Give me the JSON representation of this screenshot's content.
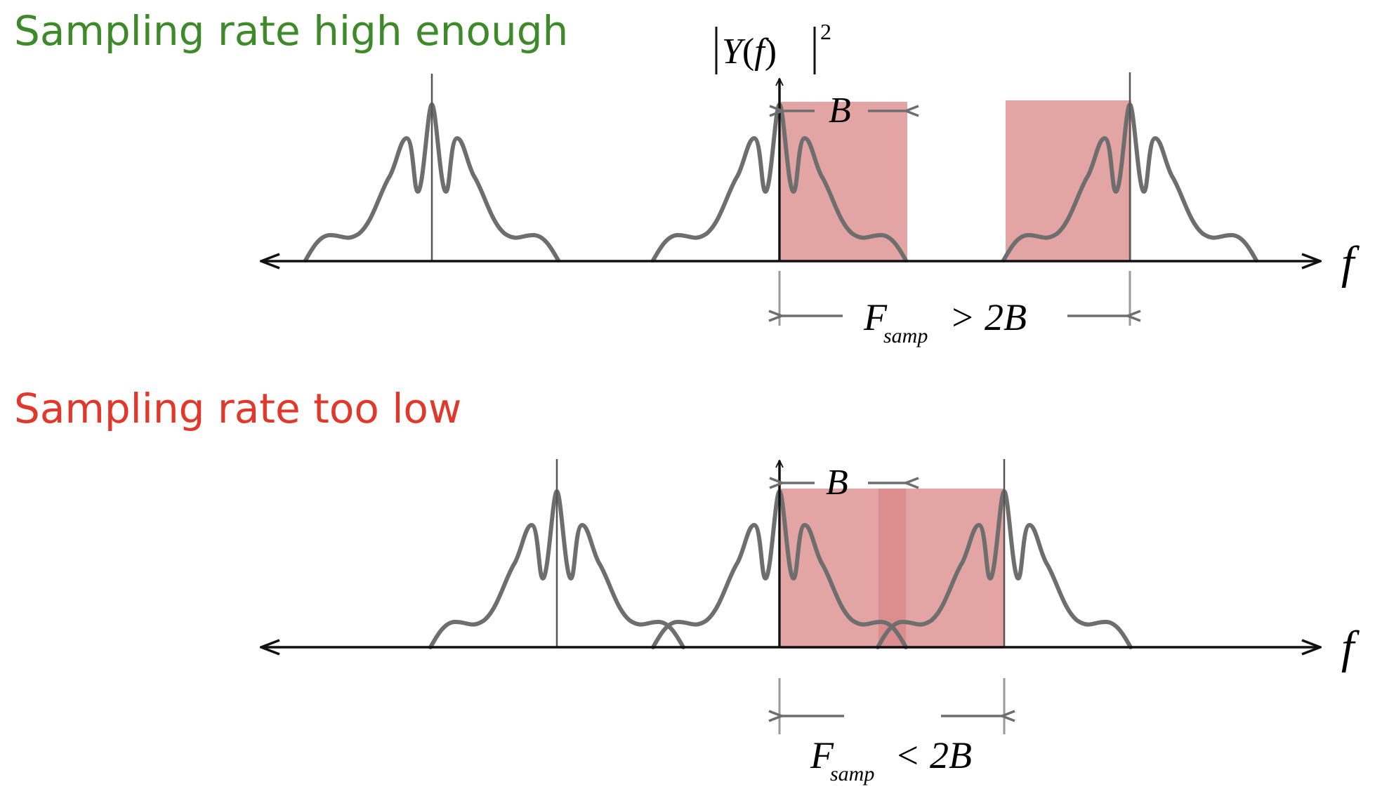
{
  "top_panel": {
    "title": "Sampling rate high enough",
    "title_color": "#3e8a2a",
    "ylabel_Y": "Y",
    "ylabel_f": "f",
    "ylabel_exp": "2",
    "bandwidth_label": "B",
    "axis_label": "f",
    "fs_label_F": "F",
    "fs_label_sub": "samp",
    "fs_relation": "> 2B"
  },
  "bottom_panel": {
    "title": "Sampling rate too low",
    "title_color": "#e0392b",
    "bandwidth_label": "B",
    "axis_label": "f",
    "fs_label_F": "F",
    "fs_label_sub": "samp",
    "fs_relation": "< 2B"
  },
  "colors": {
    "band_fill": "#d98585",
    "overlap_fill": "#c94a4a",
    "spectrum": "#6e6e6e"
  }
}
